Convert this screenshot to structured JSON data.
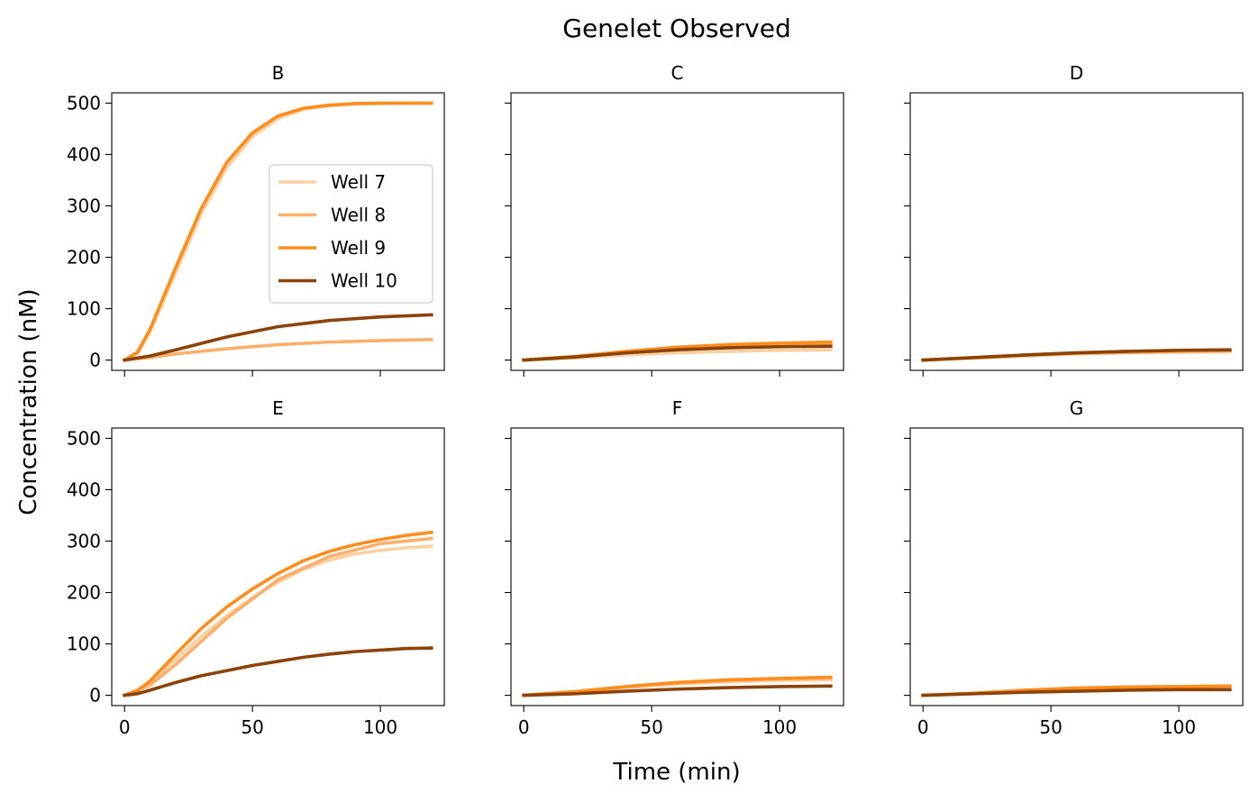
{
  "figure": {
    "title": "Genelet Observed",
    "xlabel": "Time (min)",
    "ylabel": "Concentration (nM)"
  },
  "colors": {
    "Well 7": "#fdd0a2",
    "Well 8": "#fdae6b",
    "Well 9": "#fd8d1c",
    "Well 10": "#8c4309"
  },
  "chart_data": [
    {
      "type": "line",
      "title": "B",
      "xlim": [
        -5,
        125
      ],
      "ylim": [
        -20,
        520
      ],
      "xticks": [
        0,
        50,
        100
      ],
      "yticks": [
        0,
        100,
        200,
        300,
        400,
        500
      ],
      "legend": "center-right",
      "series": [
        {
          "name": "Well 7",
          "x": [
            0,
            5,
            10,
            20,
            30,
            40,
            50,
            60,
            70,
            80,
            90,
            100,
            110,
            120
          ],
          "y": [
            0,
            12,
            55,
            170,
            285,
            375,
            435,
            470,
            488,
            495,
            498,
            499,
            500,
            500
          ]
        },
        {
          "name": "Well 8",
          "x": [
            0,
            10,
            20,
            40,
            60,
            80,
            100,
            120
          ],
          "y": [
            0,
            5,
            12,
            22,
            30,
            35,
            38,
            40
          ]
        },
        {
          "name": "Well 9",
          "x": [
            0,
            5,
            10,
            20,
            30,
            40,
            50,
            60,
            70,
            80,
            90,
            100,
            110,
            120
          ],
          "y": [
            0,
            15,
            60,
            180,
            295,
            385,
            442,
            475,
            490,
            496,
            499,
            500,
            500,
            500
          ]
        },
        {
          "name": "Well 10",
          "x": [
            0,
            10,
            20,
            40,
            60,
            80,
            100,
            120
          ],
          "y": [
            0,
            8,
            20,
            45,
            65,
            77,
            84,
            88
          ]
        }
      ]
    },
    {
      "type": "line",
      "title": "C",
      "xlim": [
        -5,
        125
      ],
      "ylim": [
        -20,
        520
      ],
      "xticks": [
        0,
        50,
        100
      ],
      "yticks": [
        0,
        100,
        200,
        300,
        400,
        500
      ],
      "legend": "none",
      "series": [
        {
          "name": "Well 7",
          "x": [
            0,
            20,
            40,
            60,
            80,
            100,
            120
          ],
          "y": [
            0,
            4,
            10,
            14,
            17,
            19,
            20
          ]
        },
        {
          "name": "Well 8",
          "x": [
            0,
            20,
            40,
            60,
            80,
            100,
            120
          ],
          "y": [
            0,
            6,
            14,
            21,
            26,
            29,
            31
          ]
        },
        {
          "name": "Well 9",
          "x": [
            0,
            20,
            40,
            60,
            80,
            100,
            120
          ],
          "y": [
            0,
            7,
            17,
            25,
            30,
            33,
            35
          ]
        },
        {
          "name": "Well 10",
          "x": [
            0,
            20,
            40,
            60,
            80,
            100,
            120
          ],
          "y": [
            0,
            6,
            14,
            20,
            24,
            26,
            27
          ]
        }
      ]
    },
    {
      "type": "line",
      "title": "D",
      "xlim": [
        -5,
        125
      ],
      "ylim": [
        -20,
        520
      ],
      "xticks": [
        0,
        50,
        100
      ],
      "yticks": [
        0,
        100,
        200,
        300,
        400,
        500
      ],
      "legend": "none",
      "series": [
        {
          "name": "Well 7",
          "x": [
            0,
            20,
            40,
            60,
            80,
            100,
            120
          ],
          "y": [
            0,
            4,
            8,
            12,
            14,
            15,
            16
          ]
        },
        {
          "name": "Well 8",
          "x": [
            0,
            20,
            40,
            60,
            80,
            100,
            120
          ],
          "y": [
            0,
            4,
            9,
            13,
            15,
            17,
            18
          ]
        },
        {
          "name": "Well 9",
          "x": [
            0,
            20,
            40,
            60,
            80,
            100,
            120
          ],
          "y": [
            0,
            5,
            10,
            14,
            17,
            19,
            20
          ]
        },
        {
          "name": "Well 10",
          "x": [
            0,
            20,
            40,
            60,
            80,
            100,
            120
          ],
          "y": [
            0,
            5,
            10,
            14,
            17,
            19,
            20
          ]
        }
      ]
    },
    {
      "type": "line",
      "title": "E",
      "xlim": [
        -5,
        125
      ],
      "ylim": [
        -20,
        520
      ],
      "xticks": [
        0,
        50,
        100
      ],
      "yticks": [
        0,
        100,
        200,
        300,
        400,
        500
      ],
      "legend": "none",
      "series": [
        {
          "name": "Well 7",
          "x": [
            0,
            5,
            10,
            20,
            30,
            40,
            50,
            60,
            70,
            80,
            90,
            100,
            110,
            120
          ],
          "y": [
            0,
            8,
            25,
            70,
            115,
            155,
            190,
            220,
            245,
            263,
            275,
            282,
            287,
            290
          ]
        },
        {
          "name": "Well 8",
          "x": [
            0,
            10,
            20,
            40,
            60,
            80,
            100,
            120
          ],
          "y": [
            0,
            20,
            60,
            150,
            225,
            270,
            295,
            305
          ]
        },
        {
          "name": "Well 9",
          "x": [
            0,
            5,
            10,
            20,
            30,
            40,
            50,
            60,
            70,
            80,
            90,
            100,
            110,
            120
          ],
          "y": [
            0,
            9,
            28,
            80,
            130,
            172,
            207,
            237,
            262,
            280,
            293,
            303,
            311,
            317
          ]
        },
        {
          "name": "Well 10",
          "x": [
            0,
            5,
            10,
            20,
            30,
            40,
            50,
            60,
            70,
            80,
            90,
            100,
            110,
            120
          ],
          "y": [
            0,
            3,
            10,
            25,
            38,
            48,
            58,
            66,
            74,
            80,
            85,
            88,
            91,
            92
          ]
        }
      ]
    },
    {
      "type": "line",
      "title": "F",
      "xlim": [
        -5,
        125
      ],
      "ylim": [
        -20,
        520
      ],
      "xticks": [
        0,
        50,
        100
      ],
      "yticks": [
        0,
        100,
        200,
        300,
        400,
        500
      ],
      "legend": "none",
      "series": [
        {
          "name": "Well 7",
          "x": [
            0,
            20,
            40,
            60,
            80,
            100,
            120
          ],
          "y": [
            0,
            6,
            15,
            22,
            26,
            29,
            30
          ]
        },
        {
          "name": "Well 8",
          "x": [
            0,
            20,
            40,
            60,
            80,
            100,
            120
          ],
          "y": [
            0,
            7,
            17,
            24,
            29,
            32,
            34
          ]
        },
        {
          "name": "Well 9",
          "x": [
            0,
            20,
            40,
            60,
            80,
            100,
            120
          ],
          "y": [
            0,
            7,
            17,
            25,
            30,
            33,
            35
          ]
        },
        {
          "name": "Well 10",
          "x": [
            0,
            20,
            40,
            60,
            80,
            100,
            120
          ],
          "y": [
            0,
            3,
            8,
            12,
            15,
            17,
            18
          ]
        }
      ]
    },
    {
      "type": "line",
      "title": "G",
      "xlim": [
        -5,
        125
      ],
      "ylim": [
        -20,
        520
      ],
      "xticks": [
        0,
        50,
        100
      ],
      "yticks": [
        0,
        100,
        200,
        300,
        400,
        500
      ],
      "legend": "none",
      "series": [
        {
          "name": "Well 7",
          "x": [
            0,
            20,
            40,
            60,
            80,
            100,
            120
          ],
          "y": [
            0,
            4,
            10,
            14,
            16,
            17,
            18
          ]
        },
        {
          "name": "Well 8",
          "x": [
            0,
            20,
            40,
            60,
            80,
            100,
            120
          ],
          "y": [
            0,
            4,
            10,
            14,
            16,
            17,
            18
          ]
        },
        {
          "name": "Well 9",
          "x": [
            0,
            20,
            40,
            60,
            80,
            100,
            120
          ],
          "y": [
            0,
            4,
            10,
            14,
            16,
            17,
            18
          ]
        },
        {
          "name": "Well 10",
          "x": [
            0,
            20,
            40,
            60,
            80,
            100,
            120
          ],
          "y": [
            0,
            3,
            6,
            8,
            10,
            11,
            11
          ]
        }
      ]
    }
  ]
}
